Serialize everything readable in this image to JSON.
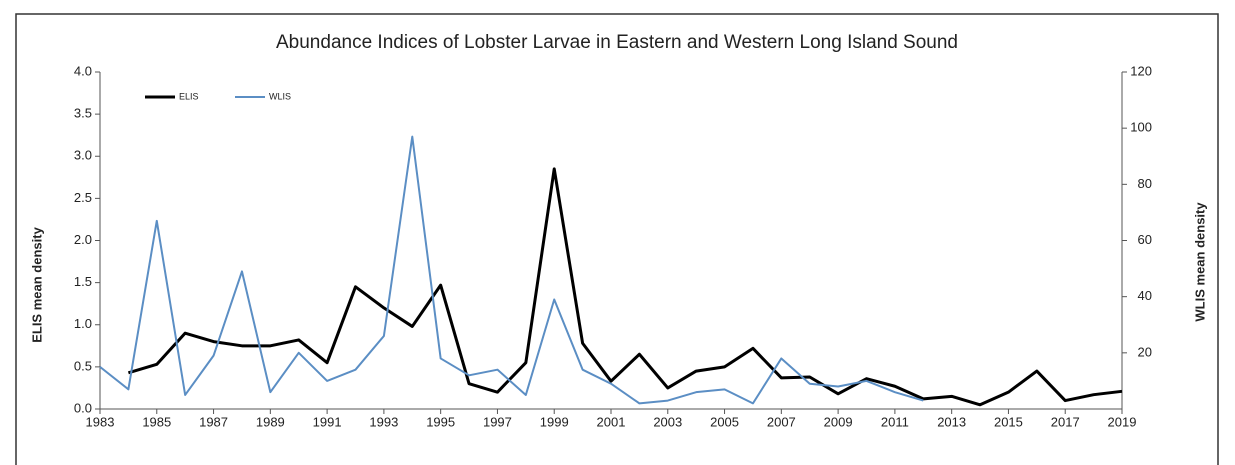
{
  "chart_data": {
    "type": "line",
    "title": "Abundance Indices of Lobster Larvae in Eastern and Western Long Island Sound",
    "ylabel": "ELIS mean density",
    "y2label": "WLIS  mean density",
    "x": [
      1983,
      1984,
      1985,
      1986,
      1987,
      1988,
      1989,
      1990,
      1991,
      1992,
      1993,
      1994,
      1995,
      1996,
      1997,
      1998,
      1999,
      2000,
      2001,
      2002,
      2003,
      2004,
      2005,
      2006,
      2007,
      2008,
      2009,
      2010,
      2011,
      2012,
      2013,
      2014,
      2015,
      2016,
      2017,
      2018,
      2019
    ],
    "series": [
      {
        "name": "ELIS",
        "color": "#000000",
        "values": [
          null,
          0.43,
          0.53,
          0.9,
          0.8,
          0.75,
          0.75,
          0.82,
          0.55,
          1.45,
          1.2,
          0.98,
          1.47,
          0.3,
          0.2,
          0.55,
          2.85,
          0.78,
          0.33,
          0.65,
          0.25,
          0.45,
          0.5,
          0.72,
          0.37,
          0.38,
          0.18,
          0.36,
          0.27,
          0.12,
          0.15,
          0.05,
          0.2,
          0.45,
          0.1,
          0.17,
          0.21
        ]
      },
      {
        "name": "WLIS",
        "color": "#5b8ec4",
        "axis": "y2",
        "values": [
          15,
          7,
          67,
          5,
          19,
          49,
          6,
          20,
          10,
          14,
          26,
          97,
          18,
          12,
          14,
          5,
          39,
          14,
          9,
          2,
          3,
          6,
          7,
          2,
          18,
          9,
          8,
          10,
          6,
          3,
          null,
          null,
          null,
          null,
          null,
          null,
          null
        ]
      }
    ],
    "xlim": [
      1983,
      2019
    ],
    "xticks": [
      1983,
      1985,
      1987,
      1989,
      1991,
      1993,
      1995,
      1997,
      1999,
      2001,
      2003,
      2005,
      2007,
      2009,
      2011,
      2013,
      2015,
      2017,
      2019
    ],
    "ylim": [
      0,
      4
    ],
    "yticks": [
      {
        "value": 0,
        "label": "0.0"
      },
      0.5,
      {
        "value": 1,
        "label": "1.0"
      },
      1.5,
      {
        "value": 2,
        "label": "2.0"
      },
      2.5,
      {
        "value": 3,
        "label": "3.0"
      },
      3.5,
      {
        "value": 4,
        "label": "4.0"
      }
    ],
    "y2lim": [
      0,
      120
    ],
    "y2ticks": [
      20,
      40,
      60,
      80,
      100,
      120
    ],
    "legend": "top-left"
  }
}
